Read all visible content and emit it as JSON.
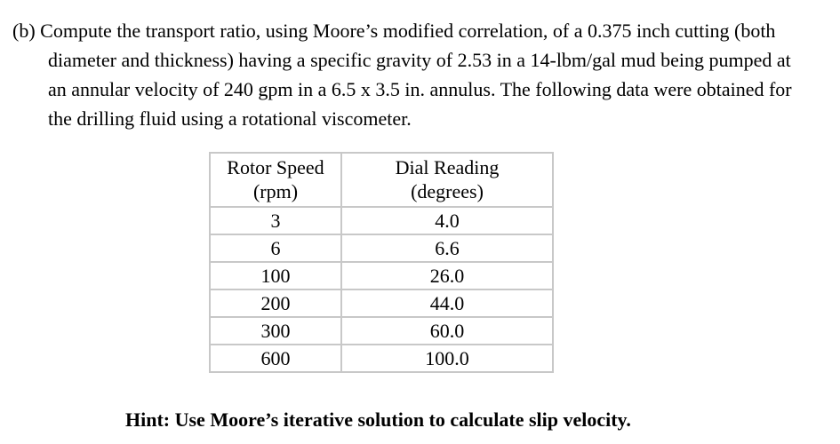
{
  "problem": {
    "text": "(b) Compute the transport ratio, using Moore’s modified correlation, of a 0.375 inch cutting (both diameter and thickness) having a specific gravity of 2.53 in a 14-lbm/gal mud being pumped at an annular velocity of 240 gpm in a 6.5 x 3.5 in. annulus. The following data were obtained for the drilling fluid using a rotational viscometer."
  },
  "table": {
    "headers": {
      "rotor_speed_line1": "Rotor Speed",
      "rotor_speed_line2": "(rpm)",
      "dial_reading_line1": "Dial Reading",
      "dial_reading_line2": "(degrees)"
    },
    "rows": [
      {
        "rpm": "3",
        "reading": "4.0"
      },
      {
        "rpm": "6",
        "reading": "6.6"
      },
      {
        "rpm": "100",
        "reading": "26.0"
      },
      {
        "rpm": "200",
        "reading": "44.0"
      },
      {
        "rpm": "300",
        "reading": "60.0"
      },
      {
        "rpm": "600",
        "reading": "100.0"
      }
    ]
  },
  "hint": "Hint: Use Moore’s iterative solution to calculate slip velocity."
}
